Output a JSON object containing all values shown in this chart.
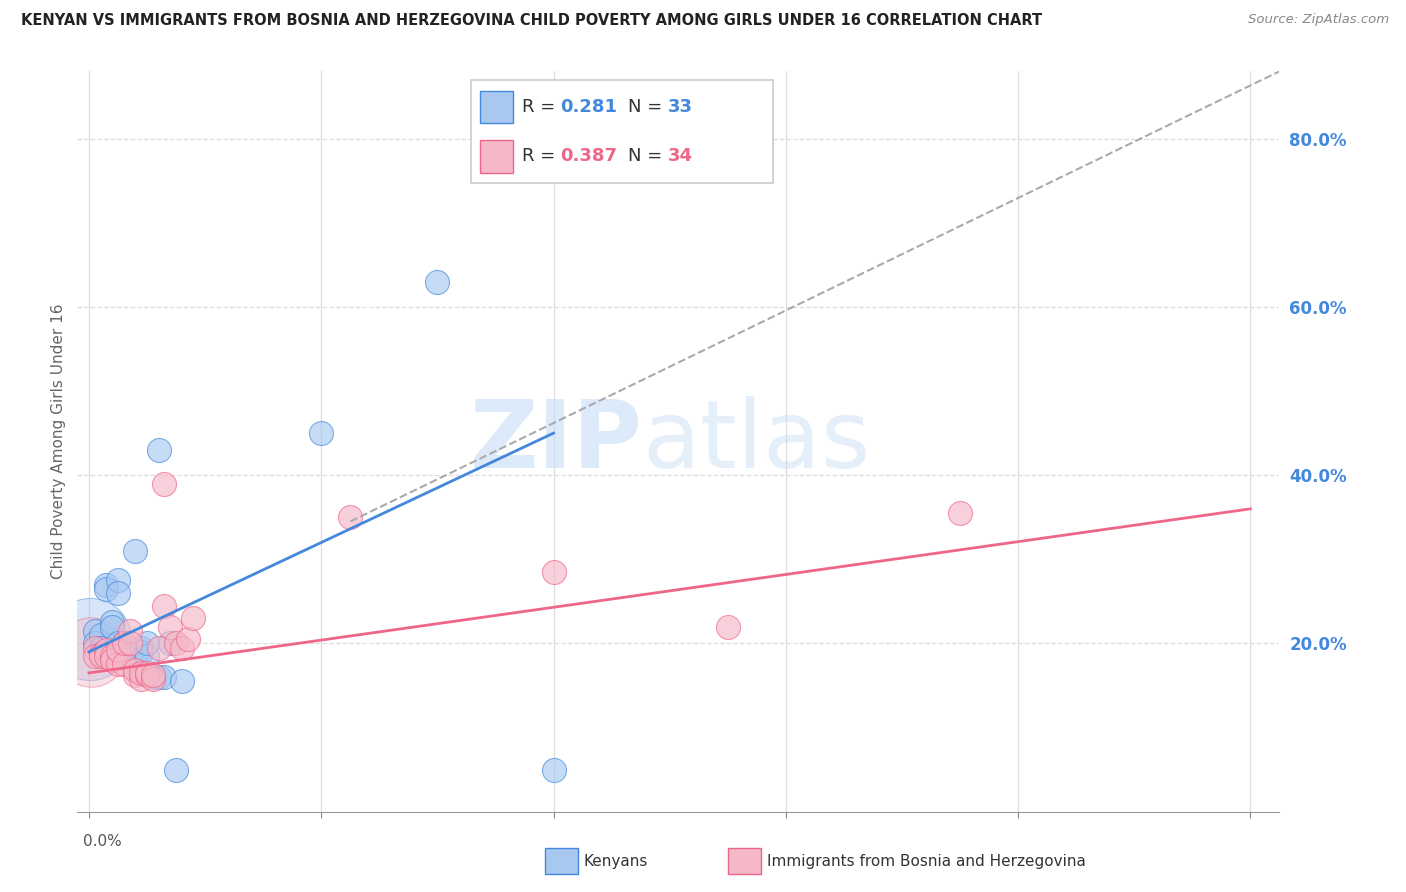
{
  "title": "KENYAN VS IMMIGRANTS FROM BOSNIA AND HERZEGOVINA CHILD POVERTY AMONG GIRLS UNDER 16 CORRELATION CHART",
  "source": "Source: ZipAtlas.com",
  "ylabel": "Child Poverty Among Girls Under 16",
  "legend_blue_r": "0.281",
  "legend_blue_n": "33",
  "legend_pink_r": "0.387",
  "legend_pink_n": "34",
  "blue_color": "#A8C8F0",
  "pink_color": "#F5B8C8",
  "line_blue_color": "#4488DD",
  "line_pink_color": "#EE6688",
  "line_dashed_color": "#AAAAAA",
  "watermark_zip": "ZIP",
  "watermark_atlas": "atlas",
  "blue_scatter": [
    [
      0.001,
      0.215
    ],
    [
      0.001,
      0.2
    ],
    [
      0.002,
      0.21
    ],
    [
      0.002,
      0.195
    ],
    [
      0.002,
      0.188
    ],
    [
      0.003,
      0.27
    ],
    [
      0.003,
      0.265
    ],
    [
      0.004,
      0.225
    ],
    [
      0.004,
      0.22
    ],
    [
      0.005,
      0.275
    ],
    [
      0.005,
      0.26
    ],
    [
      0.005,
      0.2
    ],
    [
      0.006,
      0.195
    ],
    [
      0.006,
      0.2
    ],
    [
      0.007,
      0.185
    ],
    [
      0.007,
      0.18
    ],
    [
      0.008,
      0.175
    ],
    [
      0.008,
      0.18
    ],
    [
      0.008,
      0.31
    ],
    [
      0.009,
      0.195
    ],
    [
      0.009,
      0.19
    ],
    [
      0.01,
      0.185
    ],
    [
      0.01,
      0.2
    ],
    [
      0.011,
      0.16
    ],
    [
      0.012,
      0.43
    ],
    [
      0.012,
      0.16
    ],
    [
      0.013,
      0.16
    ],
    [
      0.015,
      0.05
    ],
    [
      0.04,
      0.45
    ],
    [
      0.06,
      0.63
    ],
    [
      0.08,
      0.05
    ],
    [
      0.016,
      0.155
    ],
    [
      0.014,
      0.2
    ]
  ],
  "pink_scatter": [
    [
      0.001,
      0.195
    ],
    [
      0.001,
      0.185
    ],
    [
      0.002,
      0.188
    ],
    [
      0.002,
      0.185
    ],
    [
      0.003,
      0.192
    ],
    [
      0.003,
      0.185
    ],
    [
      0.004,
      0.185
    ],
    [
      0.004,
      0.18
    ],
    [
      0.005,
      0.175
    ],
    [
      0.005,
      0.192
    ],
    [
      0.006,
      0.175
    ],
    [
      0.006,
      0.2
    ],
    [
      0.007,
      0.215
    ],
    [
      0.007,
      0.2
    ],
    [
      0.008,
      0.163
    ],
    [
      0.008,
      0.168
    ],
    [
      0.009,
      0.158
    ],
    [
      0.009,
      0.165
    ],
    [
      0.01,
      0.162
    ],
    [
      0.01,
      0.165
    ],
    [
      0.011,
      0.158
    ],
    [
      0.011,
      0.163
    ],
    [
      0.012,
      0.195
    ],
    [
      0.013,
      0.245
    ],
    [
      0.013,
      0.39
    ],
    [
      0.014,
      0.22
    ],
    [
      0.015,
      0.2
    ],
    [
      0.016,
      0.195
    ],
    [
      0.017,
      0.205
    ],
    [
      0.018,
      0.23
    ],
    [
      0.045,
      0.35
    ],
    [
      0.08,
      0.285
    ],
    [
      0.11,
      0.22
    ],
    [
      0.15,
      0.355
    ]
  ],
  "xlim": [
    -0.002,
    0.205
  ],
  "ylim": [
    0.0,
    0.88
  ],
  "blue_line_x": [
    0.0,
    0.08
  ],
  "blue_line_y": [
    0.19,
    0.45
  ],
  "pink_line_x": [
    0.0,
    0.2
  ],
  "pink_line_y": [
    0.165,
    0.36
  ],
  "dashed_line_x": [
    0.045,
    0.205
  ],
  "dashed_line_y": [
    0.345,
    0.88
  ],
  "yticks": [
    0.2,
    0.4,
    0.6,
    0.8
  ],
  "xtick_positions": [
    0.0,
    0.04,
    0.08,
    0.12,
    0.16,
    0.2
  ],
  "bg_color": "#FFFFFF",
  "grid_color": "#DDDDDD"
}
